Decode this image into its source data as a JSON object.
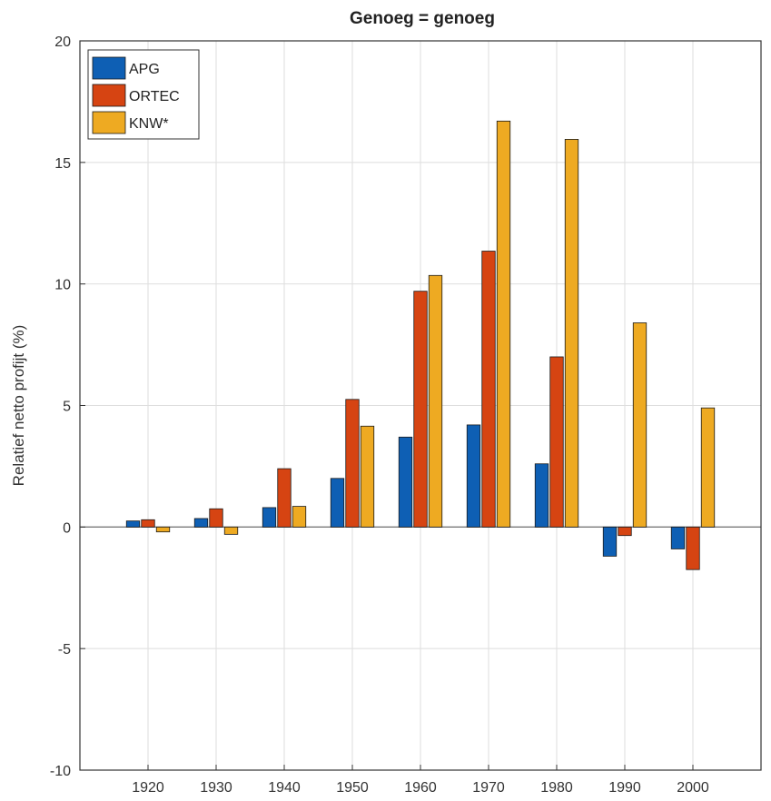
{
  "chart_data": {
    "type": "bar",
    "title": "Genoeg = genoeg",
    "xlabel": "",
    "ylabel": "Relatief netto profijt (%)",
    "categories": [
      "1920",
      "1930",
      "1940",
      "1950",
      "1960",
      "1970",
      "1980",
      "1990",
      "2000"
    ],
    "series": [
      {
        "name": "APG",
        "color": "#0e5fb4",
        "values": [
          0.25,
          0.35,
          0.8,
          2.0,
          3.7,
          4.2,
          2.6,
          -1.2,
          -0.9
        ]
      },
      {
        "name": "ORTEC",
        "color": "#d64412",
        "values": [
          0.3,
          0.75,
          2.4,
          5.25,
          9.7,
          11.35,
          7.0,
          -0.35,
          -1.75
        ]
      },
      {
        "name": "KNW*",
        "color": "#eeaa22",
        "values": [
          -0.2,
          -0.3,
          0.85,
          4.15,
          10.35,
          16.7,
          15.95,
          8.4,
          4.9
        ]
      }
    ],
    "ylim": [
      -10,
      20
    ],
    "yticks": [
      -10,
      -5,
      0,
      5,
      10,
      15,
      20
    ],
    "grid": true,
    "legend_position": "top-left"
  }
}
